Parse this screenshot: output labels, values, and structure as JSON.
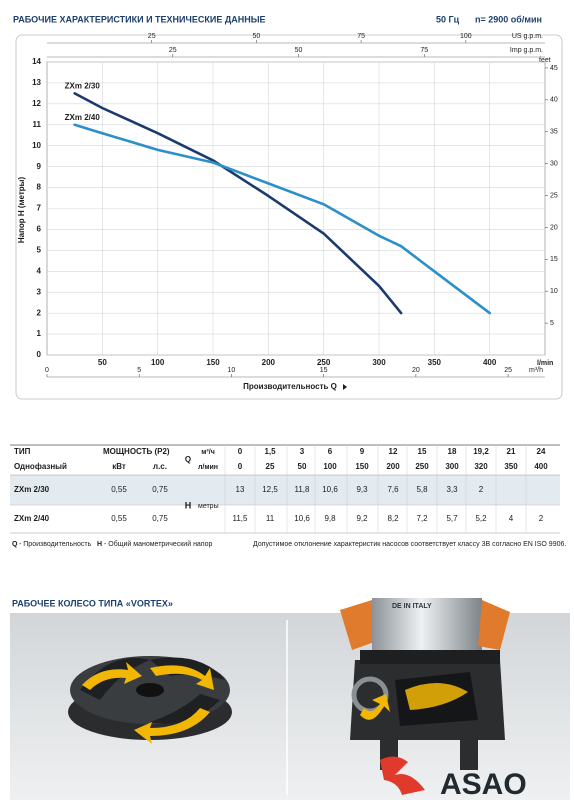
{
  "header": {
    "title": "РАБОЧИЕ ХАРАКТЕРИСТИКИ И ТЕХНИЧЕСКИЕ ДАННЫЕ",
    "frequency": "50 Гц",
    "speed": "n= 2900 об/мин"
  },
  "chart_data": {
    "type": "line",
    "x_label": "Производительность Q",
    "y_label": "Напор H (метры)",
    "x_unit": "l/min",
    "xlim": [
      0,
      450
    ],
    "xticks": [
      50,
      100,
      150,
      200,
      250,
      300,
      350,
      400
    ],
    "ylim": [
      0,
      14
    ],
    "yticks": [
      0,
      1,
      2,
      3,
      4,
      5,
      6,
      7,
      8,
      9,
      10,
      11,
      12,
      13,
      14
    ],
    "y2_label": "feet",
    "y2lim": [
      0,
      45.93
    ],
    "y2ticks": [
      5,
      10,
      15,
      20,
      25,
      30,
      35,
      40,
      45
    ],
    "x2_label": "m³/h",
    "x2lim": [
      0,
      27
    ],
    "x2ticks": [
      0,
      5,
      10,
      15,
      20,
      25
    ],
    "x3_label": "US g.p.m.",
    "x3lim": [
      0,
      118.9
    ],
    "x3ticks": [
      25,
      50,
      75,
      100
    ],
    "x4_label": "Imp g.p.m.",
    "x4lim": [
      0,
      99
    ],
    "x4ticks": [
      25,
      50,
      75
    ],
    "grid": true,
    "series": [
      {
        "name": "ZXm 2/30",
        "color": "#1c3a6d",
        "x": [
          25,
          50,
          100,
          150,
          200,
          250,
          300,
          320
        ],
        "values": [
          12.5,
          11.8,
          10.6,
          9.3,
          7.6,
          5.8,
          3.3,
          2
        ]
      },
      {
        "name": "ZXm 2/40",
        "color": "#2b90c9",
        "x": [
          25,
          50,
          100,
          150,
          200,
          250,
          300,
          320,
          350,
          400
        ],
        "values": [
          11,
          10.6,
          9.8,
          9.2,
          8.2,
          7.2,
          5.7,
          5.2,
          4,
          2
        ]
      }
    ]
  },
  "table": {
    "header": [
      [
        "ТИП",
        "МОЩНОСТЬ (P2)",
        "Q",
        "м³/ч",
        "0",
        "1,5",
        "3",
        "6",
        "9",
        "12",
        "15",
        "18",
        "19,2",
        "21",
        "24"
      ],
      [
        "Однофазный",
        "кВт",
        "л.с.",
        "л/мин",
        "0",
        "25",
        "50",
        "100",
        "150",
        "200",
        "250",
        "300",
        "320",
        "350",
        "400"
      ]
    ],
    "rows": [
      [
        "ZXm 2/30",
        "0,55",
        "0,75",
        "13",
        "12,5",
        "11,8",
        "10,6",
        "9,3",
        "7,6",
        "5,8",
        "3,3",
        "2"
      ],
      [
        "ZXm 2/40",
        "0,55",
        "0,75",
        "11,5",
        "11",
        "10,6",
        "9,8",
        "9,2",
        "8,2",
        "7,2",
        "5,7",
        "5,2",
        "4",
        "2"
      ]
    ],
    "h_label": "H",
    "h_unit": "метры"
  },
  "footnotes": {
    "q": "Q",
    "q_text": "- Производительность",
    "h": "H",
    "h_text": "- Общий манометрический напор",
    "tolerance": "Допустимое отклонение характеристик насосов соответствует классу 3В согласно EN ISO 9906."
  },
  "section": {
    "title": "РАБОЧЕЕ КОЛЕСО ТИПА «VORTEX»",
    "pump_label": "DE IN ITALY"
  },
  "logo": {
    "text": "ASAO"
  }
}
